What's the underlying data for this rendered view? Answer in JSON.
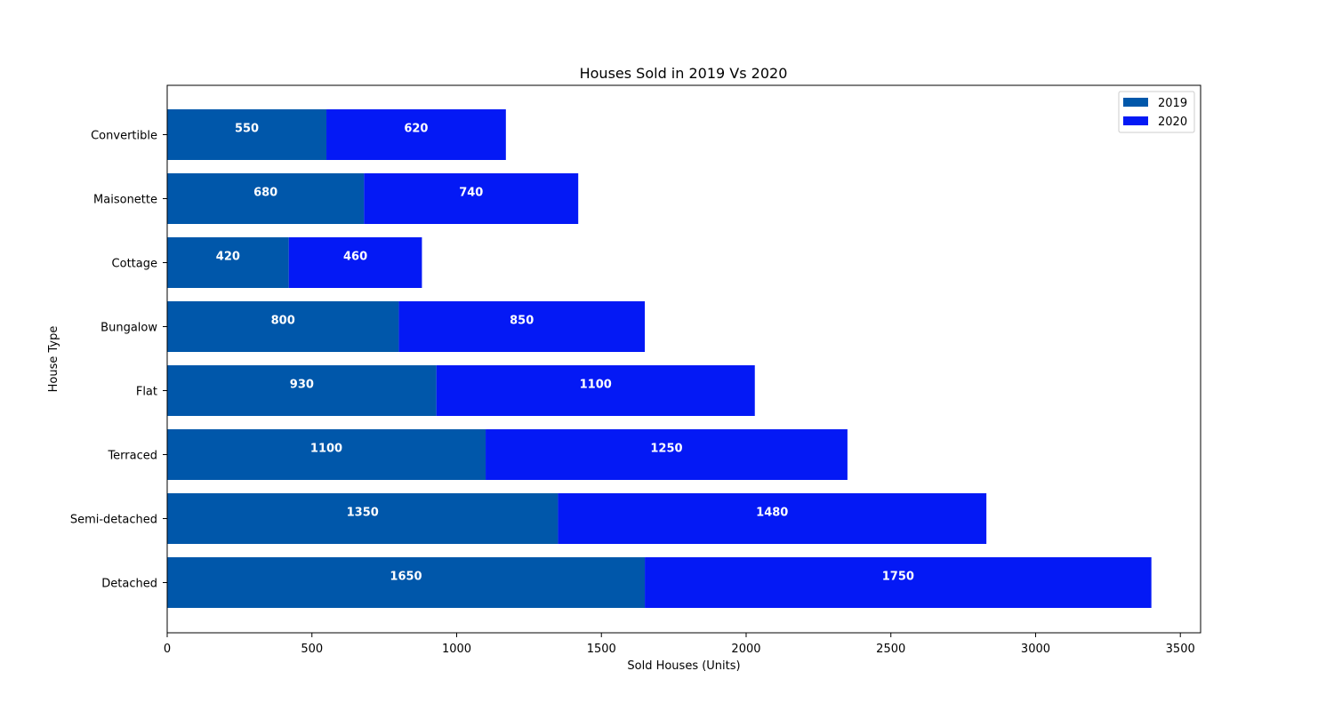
{
  "chart_data": {
    "type": "bar",
    "orientation": "horizontal",
    "stacked": true,
    "title": "Houses Sold in 2019 Vs 2020",
    "xlabel": "Sold Houses (Units)",
    "ylabel": "House Type",
    "categories": [
      "Detached",
      "Semi-detached",
      "Terraced",
      "Flat",
      "Bungalow",
      "Cottage",
      "Maisonette",
      "Convertible"
    ],
    "series": [
      {
        "name": "2019",
        "color": "#0057AA",
        "values": [
          1650,
          1350,
          1100,
          930,
          800,
          420,
          680,
          550
        ]
      },
      {
        "name": "2020",
        "color": "#0419F5",
        "values": [
          1750,
          1480,
          1250,
          1100,
          850,
          460,
          740,
          620
        ]
      }
    ],
    "xlim": [
      0,
      3570
    ],
    "xticks": [
      0,
      500,
      1000,
      1500,
      2000,
      2500,
      3000,
      3500
    ],
    "grid": false,
    "legend_position": "top-right"
  }
}
